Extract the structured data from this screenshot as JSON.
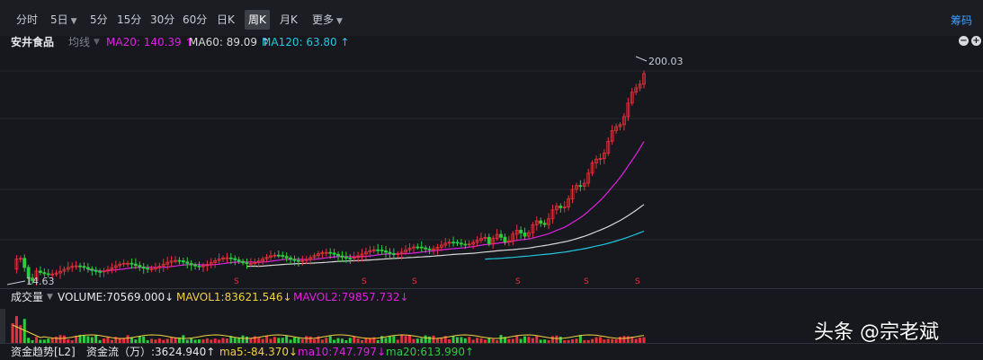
{
  "toolbar": {
    "tabs": [
      {
        "label": "分时"
      },
      {
        "label": "5日",
        "dropdown": true
      },
      {
        "label": "5分"
      },
      {
        "label": "15分"
      },
      {
        "label": "30分"
      },
      {
        "label": "60分"
      },
      {
        "label": "日K"
      },
      {
        "label": "周K",
        "active": true
      },
      {
        "label": "月K"
      },
      {
        "label": "更多",
        "dropdown": true
      }
    ],
    "chips_label": "筹码"
  },
  "main": {
    "stock_name": "安井食品",
    "indicator": "均线",
    "ma20": "MA20: 140.39 ↑",
    "ma60": "MA60: 89.09 ↑",
    "ma120": "MA120: 63.80 ↑",
    "high_label": "200.03",
    "low_label": "14.63",
    "colors": {
      "ma20": "#e020e0",
      "ma60": "#d8d8d8",
      "ma120": "#20c8e0",
      "up": "#e8303a",
      "down": "#2ecc40"
    }
  },
  "volume": {
    "title": "成交量",
    "volume_text": "VOLUME:70569.000↓",
    "mavol1": "MAVOL1:83621.546↓",
    "mavol2": "MAVOL2:79857.732↓"
  },
  "fund": {
    "title": "资金趋势[L2]",
    "flow": "资金流（万）:3624.940↑",
    "ma5": "ma5:-84.370↓",
    "ma10": "ma10:747.797↓",
    "ma20": "ma20:613.990↑"
  },
  "watermark": "头条 @宗老斌",
  "chart_data": {
    "type": "candlestick",
    "period": "周K",
    "price_high_label": 200.03,
    "price_low_label": 14.63,
    "ma_series": [
      {
        "name": "MA20",
        "last": 140.39
      },
      {
        "name": "MA60",
        "last": 89.09
      },
      {
        "name": "MA120",
        "last": 63.8
      }
    ],
    "volume_last": 70569.0,
    "mavol1_last": 83621.546,
    "mavol2_last": 79857.732,
    "fund_flow_last": 3624.94,
    "fund_ma5_last": -84.37,
    "fund_ma10_last": 747.797,
    "fund_ma20_last": 613.99
  }
}
